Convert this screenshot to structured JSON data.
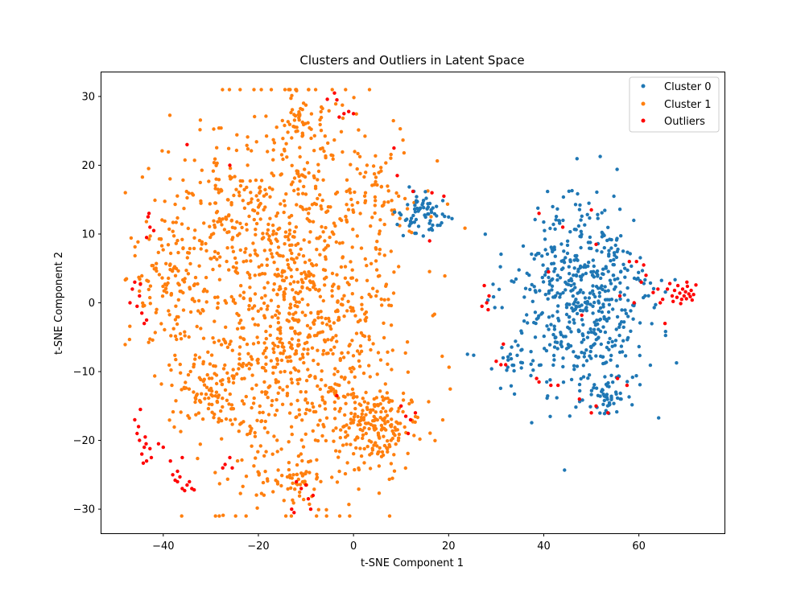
{
  "chart_data": {
    "type": "scatter",
    "title": "Clusters and Outliers in Latent Space",
    "xlabel": "t-SNE Component 1",
    "ylabel": "t-SNE Component 2",
    "xlim": [
      -53,
      78
    ],
    "ylim": [
      -33.5,
      33.5
    ],
    "xticks": [
      -40,
      -20,
      0,
      20,
      40,
      60
    ],
    "yticks": [
      -30,
      -20,
      -10,
      0,
      10,
      20,
      30
    ],
    "grid": false,
    "legend_position": "top-right",
    "series": [
      {
        "name": "Cluster 0",
        "color": "#1f77b4",
        "clusters": [
          {
            "cx": 48,
            "cy": 0,
            "sx": 7.5,
            "sy": 7.5,
            "n": 560
          },
          {
            "cx": 15,
            "cy": 13,
            "sx": 2.5,
            "sy": 1.5,
            "n": 70
          },
          {
            "cx": 53,
            "cy": -14,
            "sx": 1.5,
            "sy": 1.2,
            "n": 40
          },
          {
            "cx": 33,
            "cy": -8,
            "sx": 1.5,
            "sy": 1.0,
            "n": 15
          }
        ]
      },
      {
        "name": "Cluster 1",
        "color": "#ff7f0e",
        "clusters": [
          {
            "cx": -12,
            "cy": 0,
            "sx": 11,
            "sy": 14,
            "n": 1100
          },
          {
            "cx": -38,
            "cy": 5,
            "sx": 4.5,
            "sy": 6.5,
            "n": 150
          },
          {
            "cx": -30,
            "cy": -13,
            "sx": 4.5,
            "sy": 2.5,
            "n": 90
          },
          {
            "cx": 5,
            "cy": -18,
            "sx": 4.5,
            "sy": 2.5,
            "n": 180
          },
          {
            "cx": -12,
            "cy": 26,
            "sx": 3.0,
            "sy": 2.0,
            "n": 45
          },
          {
            "cx": -12,
            "cy": -26,
            "sx": 3.0,
            "sy": 1.5,
            "n": 40
          },
          {
            "cx": 5,
            "cy": 15,
            "sx": 4.0,
            "sy": 4.0,
            "n": 60
          },
          {
            "cx": -27,
            "cy": 15,
            "sx": 4.0,
            "sy": 4.0,
            "n": 60
          }
        ]
      },
      {
        "name": "Outliers",
        "color": "#ff0000",
        "points": [
          [
            -47,
            0
          ],
          [
            -46,
            3
          ],
          [
            -45.5,
            -0.5
          ],
          [
            -46.5,
            2
          ],
          [
            -45,
            1
          ],
          [
            -44.5,
            -1.5
          ],
          [
            -43.5,
            -2.5
          ],
          [
            -44,
            -3
          ],
          [
            -44.8,
            2.7
          ],
          [
            -43,
            13
          ],
          [
            -43.2,
            12.5
          ],
          [
            -42.8,
            11
          ],
          [
            -42,
            10.5
          ],
          [
            -43.5,
            9.5
          ],
          [
            -46,
            -17
          ],
          [
            -45.5,
            -19
          ],
          [
            -45,
            -20
          ],
          [
            -44,
            -21
          ],
          [
            -44.5,
            -22
          ],
          [
            -43.5,
            -23
          ],
          [
            -42.5,
            -22.5
          ],
          [
            -45.2,
            -18
          ],
          [
            -43.8,
            -19.5
          ],
          [
            -44.8,
            -15.5
          ],
          [
            -43.6,
            -20.5
          ],
          [
            -42.8,
            -21.2
          ],
          [
            -44.2,
            -23.3
          ],
          [
            -41,
            -20.5
          ],
          [
            -40,
            -21
          ],
          [
            -38,
            -25
          ],
          [
            -37,
            -26
          ],
          [
            -36,
            -27
          ],
          [
            -35,
            -26.5
          ],
          [
            -34,
            -27
          ],
          [
            -37.5,
            -25.8
          ],
          [
            -36.5,
            -25.3
          ],
          [
            -35.5,
            -27.3
          ],
          [
            -34.5,
            -26
          ],
          [
            -33.5,
            -27.2
          ],
          [
            -37,
            -24.5
          ],
          [
            -38.5,
            -23
          ],
          [
            -36,
            -22.5
          ],
          [
            -27.5,
            -24
          ],
          [
            -27,
            -23.5
          ],
          [
            -26,
            -22.5
          ],
          [
            -25.5,
            -24
          ],
          [
            -13,
            -30
          ],
          [
            -12.5,
            -30.5
          ],
          [
            -9,
            -30
          ],
          [
            -8.5,
            -28
          ],
          [
            -9.5,
            -28.5
          ],
          [
            -11,
            -27
          ],
          [
            -10,
            -26.5
          ],
          [
            -12,
            -26
          ],
          [
            -4,
            30.5
          ],
          [
            -3.5,
            29.5
          ],
          [
            -3,
            27
          ],
          [
            -2,
            27.5
          ],
          [
            -1,
            27.8
          ],
          [
            0,
            27.5
          ],
          [
            -5.5,
            29.6
          ],
          [
            -26,
            20
          ],
          [
            -35,
            23
          ],
          [
            -3.5,
            -13.5
          ],
          [
            8.5,
            22.5
          ],
          [
            9.2,
            18.5
          ],
          [
            12.5,
            16.2
          ],
          [
            16,
            9
          ],
          [
            16.5,
            16
          ],
          [
            19,
            15.5
          ],
          [
            11,
            -16.5
          ],
          [
            12,
            -17
          ],
          [
            13,
            -16
          ],
          [
            10,
            -15
          ],
          [
            11.5,
            -19
          ],
          [
            27.5,
            2.5
          ],
          [
            28,
            0
          ],
          [
            27,
            -0.5
          ],
          [
            28.3,
            -1
          ],
          [
            28.5,
            1
          ],
          [
            30,
            -8.5
          ],
          [
            31,
            -9
          ],
          [
            31.5,
            -6
          ],
          [
            32,
            -9
          ],
          [
            38.5,
            -11
          ],
          [
            39,
            -11.5
          ],
          [
            41.5,
            -12
          ],
          [
            43,
            -12
          ],
          [
            47.5,
            -14
          ],
          [
            50,
            -16
          ],
          [
            51,
            -15
          ],
          [
            53.5,
            -16
          ],
          [
            39,
            13
          ],
          [
            44,
            11
          ],
          [
            50,
            13.5
          ],
          [
            51,
            8.5
          ],
          [
            41,
            4.5
          ],
          [
            48,
            -1.8
          ],
          [
            58,
            6
          ],
          [
            59.5,
            6
          ],
          [
            61,
            5.5
          ],
          [
            60.5,
            3
          ],
          [
            61.5,
            4
          ],
          [
            59,
            0
          ],
          [
            63,
            1.5
          ],
          [
            64,
            2
          ],
          [
            65,
            0.5
          ],
          [
            65.5,
            -3
          ],
          [
            66,
            2
          ],
          [
            67,
            1
          ],
          [
            67.5,
            1.8
          ],
          [
            68,
            0.8
          ],
          [
            68.2,
            2.5
          ],
          [
            68.6,
            1.4
          ],
          [
            69,
            0.5
          ],
          [
            69.2,
            2
          ],
          [
            69.5,
            1
          ],
          [
            69.8,
            1.6
          ],
          [
            70,
            0.6
          ],
          [
            70.2,
            2.4
          ],
          [
            70.5,
            1.3
          ],
          [
            70.8,
            0.9
          ],
          [
            71,
            1.8
          ],
          [
            71.5,
            1.2
          ],
          [
            72,
            2.6
          ],
          [
            71.2,
            0.4
          ],
          [
            68.8,
            -0.1
          ],
          [
            70.1,
            3
          ],
          [
            67.2,
            0.2
          ],
          [
            66.5,
            2.8
          ],
          [
            64.5,
            0
          ],
          [
            56,
            1
          ],
          [
            55.5,
            -11
          ],
          [
            57.5,
            -12
          ]
        ]
      }
    ]
  }
}
